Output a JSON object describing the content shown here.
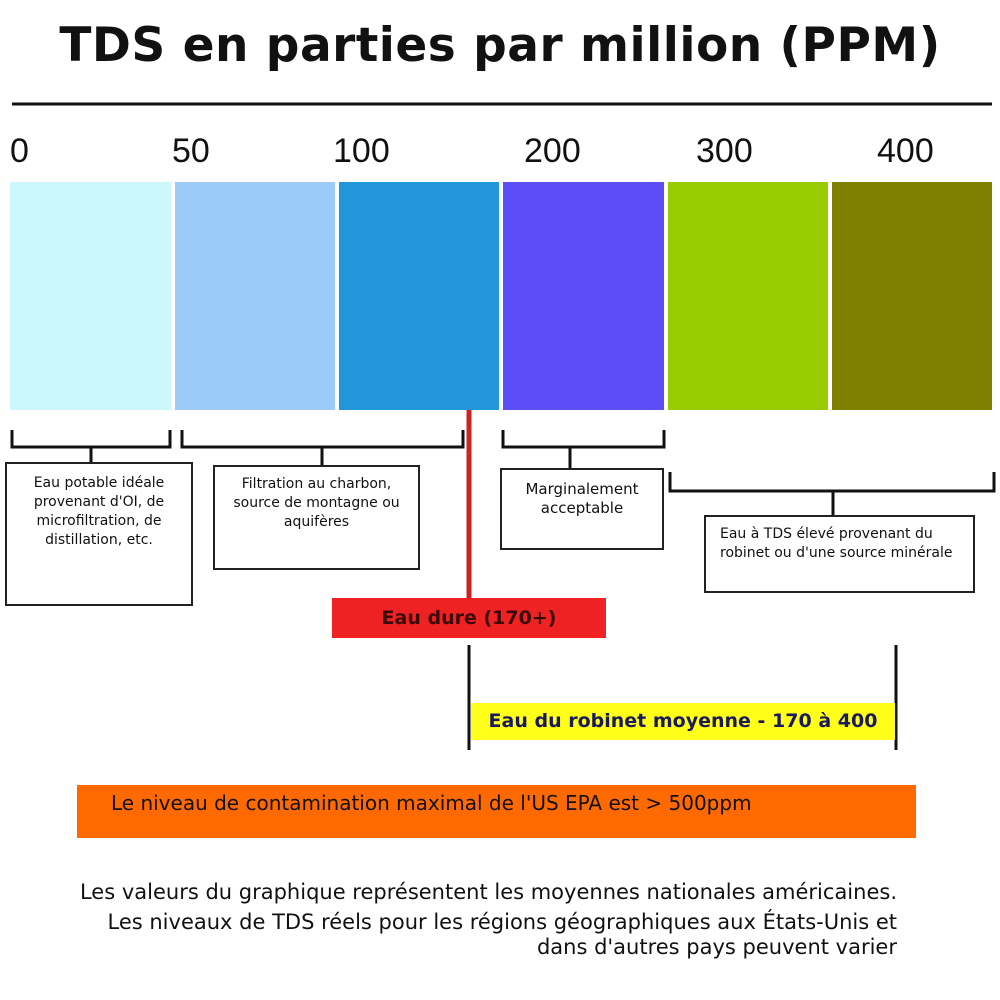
{
  "header": {
    "title": "TDS en parties par million (PPM)"
  },
  "scale": {
    "labels": [
      0,
      50,
      100,
      200,
      300,
      400
    ]
  },
  "ranges": [
    {
      "label": "Eau potable idéale provenant d'OI, de microfiltration, de distillation, etc."
    },
    {
      "label": "Filtration au charbon, source de montagne ou aquifères"
    },
    {
      "label": "Marginalement acceptable"
    },
    {
      "label": "Eau à TDS élevé provenant du robinet ou d'une source minérale"
    }
  ],
  "annotations": {
    "hard_water": "Eau dure (170+)",
    "tap_water": "Eau du robinet moyenne - 170 à 400",
    "epa": "Le niveau de contamination maximal de l'US EPA est > 500ppm"
  },
  "footer": {
    "lines": [
      "Les valeurs du graphique représentent les moyennes nationales américaines.",
      "Les niveaux de TDS réels pour les régions géographiques aux États-Unis et",
      "dans d'autres pays peuvent varier"
    ]
  }
}
